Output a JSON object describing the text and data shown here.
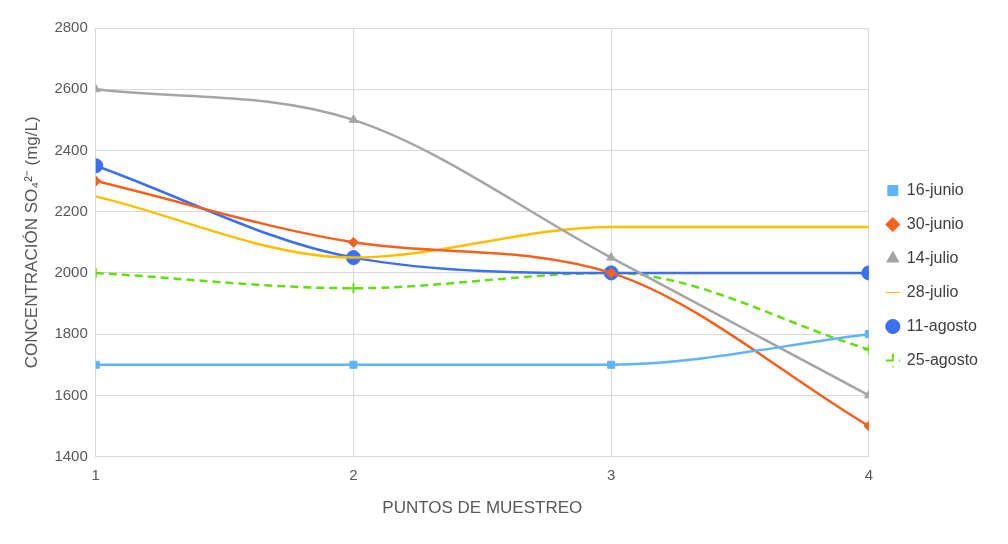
{
  "chart_data": {
    "type": "line",
    "xlabel": "PUNTOS DE MUESTREO",
    "ylabel": "CONCENTRACIÓN SO₄²⁻ (mg/L)",
    "x": [
      1,
      2,
      3,
      4
    ],
    "xlim": [
      1,
      4
    ],
    "xticks": [
      1,
      2,
      3,
      4
    ],
    "ylim": [
      1400,
      2800
    ],
    "yticks": [
      1400,
      1600,
      1800,
      2000,
      2200,
      2400,
      2600,
      2800
    ],
    "grid": true,
    "legend": "right",
    "series": [
      {
        "name": "16-junio",
        "color": "#5fb4fb",
        "values": [
          1700,
          1700,
          1700,
          1800
        ],
        "marker": "square"
      },
      {
        "name": "30-junio",
        "color": "#f5621e",
        "values": [
          2300,
          2100,
          2000,
          1500
        ],
        "marker": "diamond"
      },
      {
        "name": "14-julio",
        "color": "#a5a5a5",
        "values": [
          2600,
          2500,
          2050,
          1600
        ],
        "marker": "triangle"
      },
      {
        "name": "28-julio",
        "color": "#ffbf00",
        "values": [
          2250,
          2050,
          2150,
          2150
        ],
        "marker": "none"
      },
      {
        "name": "11-agosto",
        "color": "#3b6ff5",
        "values": [
          2350,
          2050,
          2000,
          2000
        ],
        "marker": "circle"
      },
      {
        "name": "25-agosto",
        "color": "#66dd11",
        "values": [
          2000,
          1950,
          2000,
          1750
        ],
        "marker": "cross",
        "line_style": "dashed"
      }
    ]
  }
}
